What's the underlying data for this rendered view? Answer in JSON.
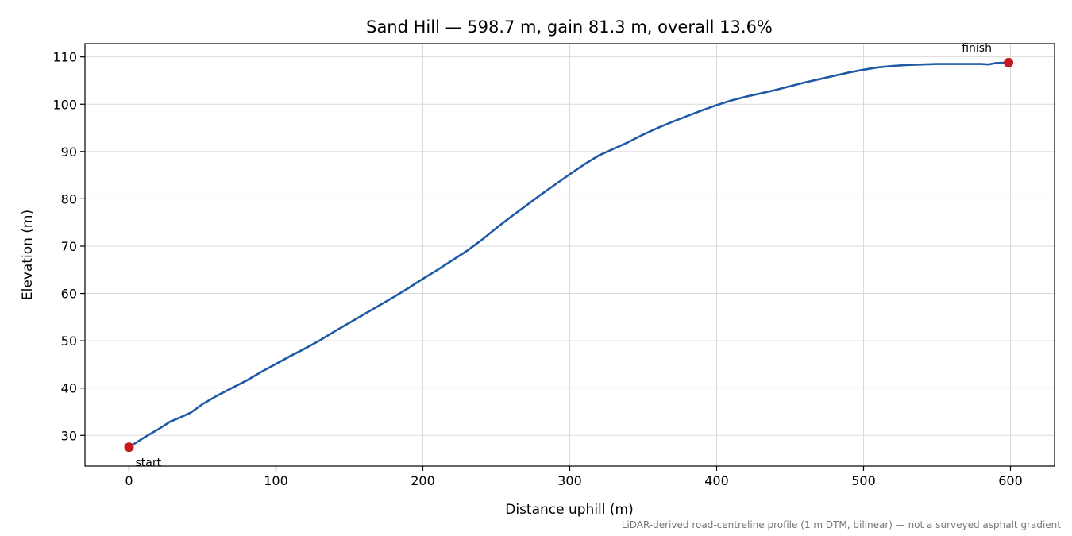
{
  "chart_data": {
    "type": "line",
    "title": "Sand Hill — 598.7 m, gain 81.3 m, overall 13.6%",
    "xlabel": "Distance uphill (m)",
    "ylabel": "Elevation (m)",
    "xlim": [
      -30,
      630
    ],
    "ylim": [
      23.5,
      112.8
    ],
    "xticks": [
      0,
      100,
      200,
      300,
      400,
      500,
      600
    ],
    "yticks": [
      30,
      40,
      50,
      60,
      70,
      80,
      90,
      100,
      110
    ],
    "grid": true,
    "series": [
      {
        "color": "#1f5aa6",
        "x": [
          0,
          10,
          20,
          28,
          35,
          42,
          50,
          60,
          70,
          80,
          90,
          100,
          110,
          120,
          130,
          140,
          150,
          160,
          170,
          180,
          190,
          200,
          210,
          220,
          230,
          240,
          250,
          260,
          270,
          280,
          290,
          300,
          310,
          320,
          330,
          340,
          350,
          360,
          370,
          380,
          390,
          400,
          410,
          420,
          430,
          440,
          450,
          460,
          470,
          480,
          490,
          500,
          510,
          520,
          530,
          540,
          550,
          560,
          570,
          580,
          585,
          590,
          598.7
        ],
        "y": [
          27.5,
          29.5,
          31.3,
          32.9,
          33.8,
          34.8,
          36.6,
          38.4,
          40.0,
          41.6,
          43.4,
          45.1,
          46.8,
          48.4,
          50.1,
          52.0,
          53.8,
          55.6,
          57.4,
          59.2,
          61.1,
          63.1,
          65.0,
          67.0,
          69.0,
          71.3,
          73.8,
          76.2,
          78.5,
          80.8,
          83.0,
          85.2,
          87.3,
          89.2,
          90.6,
          92.0,
          93.6,
          95.0,
          96.3,
          97.5,
          98.7,
          99.8,
          100.8,
          101.6,
          102.3,
          103.0,
          103.8,
          104.6,
          105.3,
          106.0,
          106.7,
          107.3,
          107.8,
          108.1,
          108.3,
          108.4,
          108.5,
          108.5,
          108.5,
          108.5,
          108.4,
          108.7,
          108.8
        ]
      }
    ],
    "annotations": [
      {
        "text": "start",
        "x": 0,
        "y": 27.5
      },
      {
        "text": "finish",
        "x": 598.7,
        "y": 108.8
      }
    ],
    "footnote": "LiDAR-derived road-centreline profile (1 m DTM, bilinear) — not a surveyed asphalt gradient"
  }
}
